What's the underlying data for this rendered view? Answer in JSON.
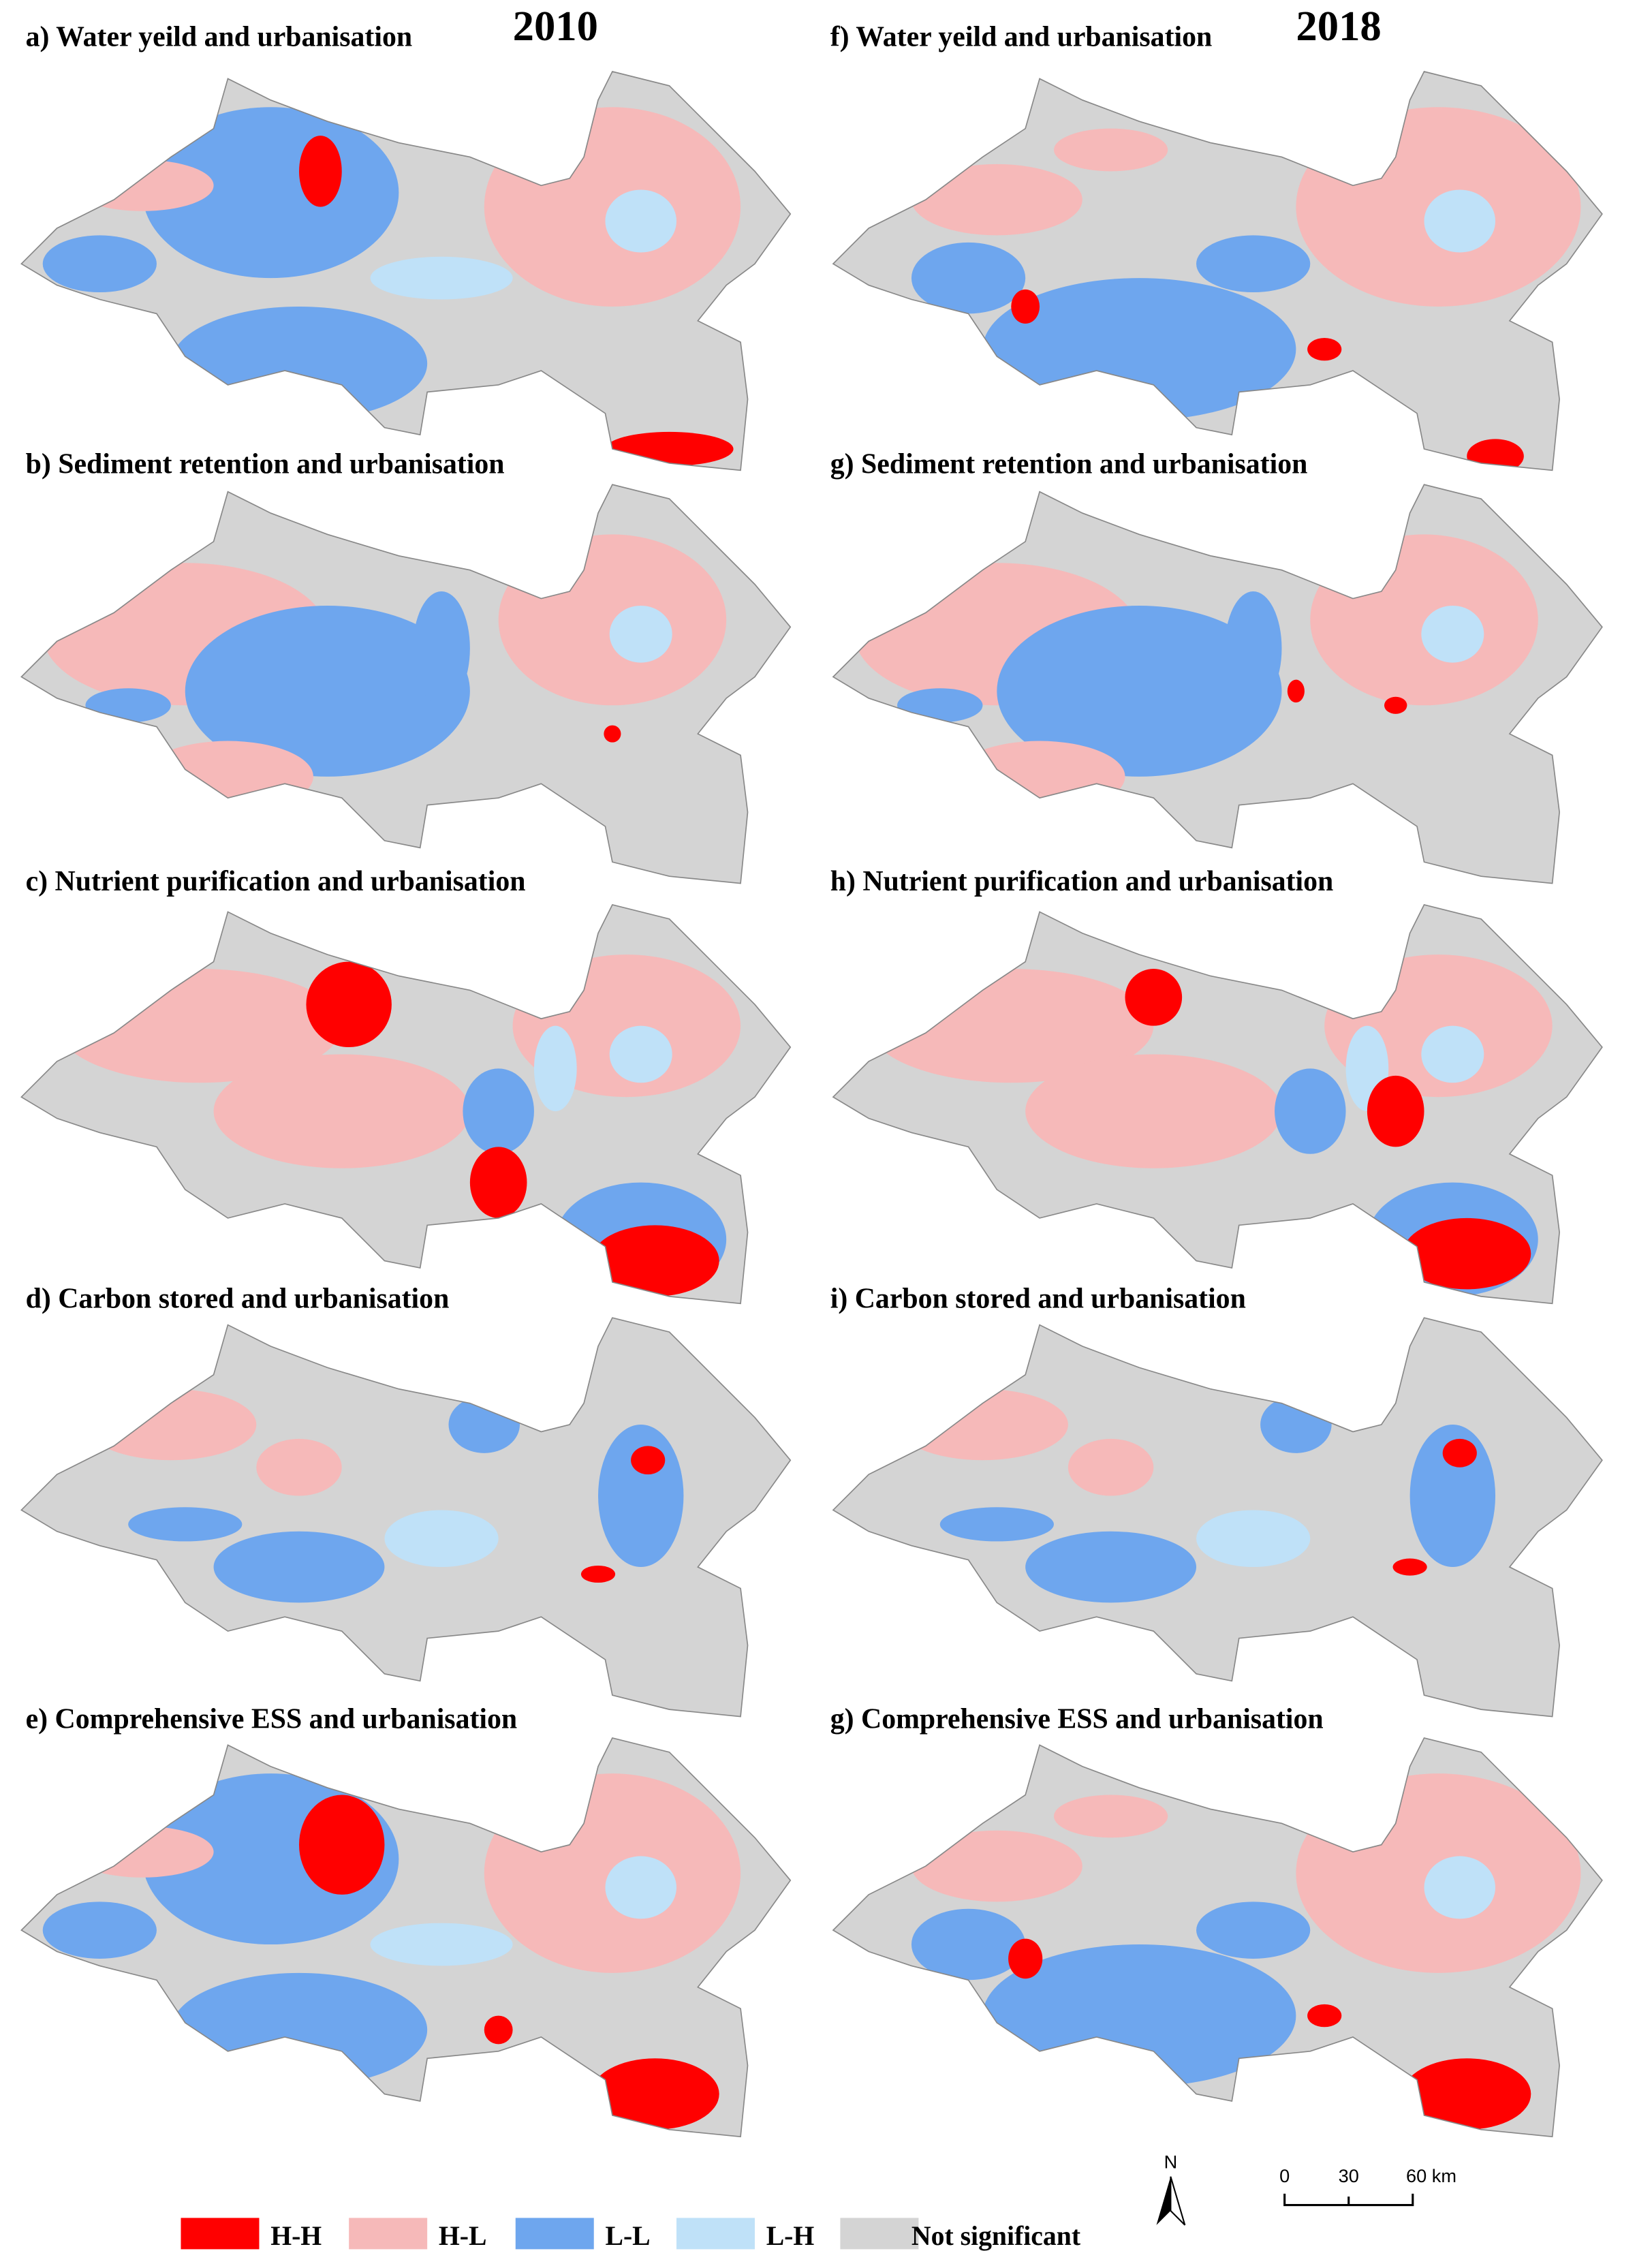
{
  "years": [
    "2010",
    "2018"
  ],
  "panels": [
    {
      "title": "a) Water yeild and urbanisation"
    },
    {
      "title": "b) Sediment retention and urbanisation"
    },
    {
      "title": "c) Nutrient purification and urbanisation"
    },
    {
      "title": "d) Carbon stored and urbanisation"
    },
    {
      "title": "e) Comprehensive ESS and urbanisation"
    },
    {
      "title": "f) Water yeild and urbanisation"
    },
    {
      "title": "g) Sediment retention and urbanisation"
    },
    {
      "title": "h) Nutrient purification and urbanisation"
    },
    {
      "title": "i) Carbon stored and urbanisation"
    },
    {
      "title": "g) Comprehensive ESS and urbanisation"
    }
  ],
  "legend": {
    "items": [
      {
        "label": "H-H",
        "color": "#ff0000"
      },
      {
        "label": "H-L",
        "color": "#f6b9b9"
      },
      {
        "label": "L-L",
        "color": "#6ea6ee"
      },
      {
        "label": "L-H",
        "color": "#bfe1f8"
      },
      {
        "label": "Not significant",
        "color": "#d4d4d4"
      }
    ]
  },
  "north": "N",
  "scale": {
    "labels": [
      "0",
      "30",
      "60 km"
    ]
  }
}
